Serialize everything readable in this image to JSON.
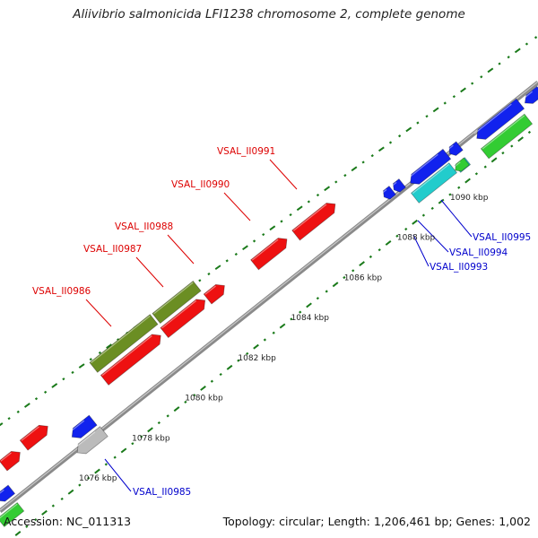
{
  "title": "Aliivibrio salmonicida LFI1238 chromosome 2, complete genome",
  "footer": {
    "accession": "Accession: NC_011313",
    "summary": "Topology: circular; Length: 1,206,461 bp; Genes: 1,002"
  },
  "ticks": [
    {
      "label": "1076 kbp",
      "pos": 1076
    },
    {
      "label": "1078 kbp",
      "pos": 1078
    },
    {
      "label": "1080 kbp",
      "pos": 1080
    },
    {
      "label": "1082 kbp",
      "pos": 1082
    },
    {
      "label": "1084 kbp",
      "pos": 1084
    },
    {
      "label": "1086 kbp",
      "pos": 1086
    },
    {
      "label": "1088 kbp",
      "pos": 1088
    },
    {
      "label": "1090 kbp",
      "pos": 1090
    }
  ],
  "gene_labels": [
    {
      "text": "VSAL_II0986",
      "color": "#dd0000"
    },
    {
      "text": "VSAL_II0987",
      "color": "#dd0000"
    },
    {
      "text": "VSAL_II0988",
      "color": "#dd0000"
    },
    {
      "text": "VSAL_II0990",
      "color": "#dd0000"
    },
    {
      "text": "VSAL_II0991",
      "color": "#dd0000"
    },
    {
      "text": "VSAL_II0985",
      "color": "#0000cc"
    },
    {
      "text": "VSAL_II0993",
      "color": "#0000cc"
    },
    {
      "text": "VSAL_II0994",
      "color": "#0000cc"
    },
    {
      "text": "VSAL_II0995",
      "color": "#0000cc"
    }
  ],
  "colors": {
    "forward_cds": "#ee1111",
    "reverse_cds": "#1122ee",
    "rrna": "#6b8e23",
    "other_green": "#33cc33",
    "cyan": "#22cccc",
    "gray": "#bbbbbb",
    "backbone": "#999999",
    "dots": "#1a7a1a"
  }
}
